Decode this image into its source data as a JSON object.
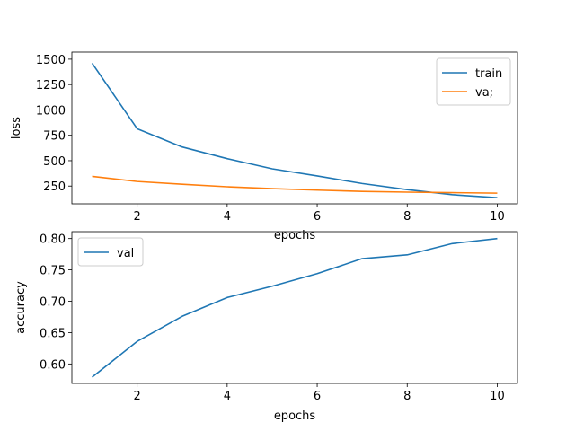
{
  "chart_data": [
    {
      "type": "line",
      "xlabel": "epochs",
      "ylabel": "loss",
      "x": [
        1,
        2,
        3,
        4,
        5,
        6,
        7,
        8,
        9,
        10
      ],
      "xticks": [
        2,
        4,
        6,
        8,
        10
      ],
      "yticks": [
        250,
        500,
        750,
        1000,
        1250,
        1500
      ],
      "ylim": [
        75,
        1570
      ],
      "xlim": [
        0.55,
        10.45
      ],
      "legend_position": "top-right",
      "series": [
        {
          "name": "train",
          "color": "#1f77b4",
          "values": [
            1460,
            815,
            635,
            520,
            420,
            350,
            275,
            215,
            165,
            135
          ]
        },
        {
          "name": "va;",
          "color": "#ff7f0e",
          "values": [
            345,
            295,
            268,
            243,
            225,
            210,
            197,
            190,
            185,
            180
          ]
        }
      ]
    },
    {
      "type": "line",
      "xlabel": "epochs",
      "ylabel": "accuracy",
      "x": [
        1,
        2,
        3,
        4,
        5,
        6,
        7,
        8,
        9,
        10
      ],
      "xticks": [
        2,
        4,
        6,
        8,
        10
      ],
      "yticks": [
        0.6,
        0.65,
        0.7,
        0.75,
        0.8
      ],
      "ylim": [
        0.569,
        0.811
      ],
      "xlim": [
        0.55,
        10.45
      ],
      "legend_position": "top-left",
      "series": [
        {
          "name": "val",
          "color": "#1f77b4",
          "values": [
            0.579,
            0.636,
            0.676,
            0.706,
            0.724,
            0.744,
            0.768,
            0.774,
            0.792,
            0.8
          ]
        }
      ]
    }
  ]
}
